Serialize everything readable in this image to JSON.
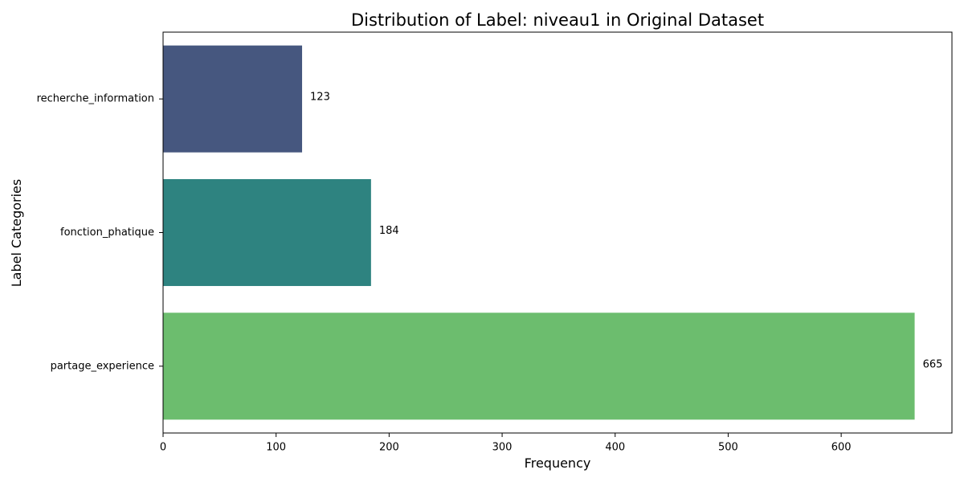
{
  "chart_data": {
    "type": "bar",
    "orientation": "horizontal",
    "title": "Distribution of Label: niveau1 in Original Dataset",
    "xlabel": "Frequency",
    "ylabel": "Label Categories",
    "categories": [
      "recherche_information",
      "fonction_phatique",
      "partage_experience"
    ],
    "values": [
      123,
      184,
      665
    ],
    "data_labels": [
      "123",
      "184",
      "665"
    ],
    "colors": [
      "#46577f",
      "#2e8380",
      "#6cbd6e"
    ],
    "xlim": [
      0,
      698
    ],
    "xticks": [
      0,
      100,
      200,
      300,
      400,
      500,
      600
    ],
    "xtick_labels": [
      "0",
      "100",
      "200",
      "300",
      "400",
      "500",
      "600"
    ],
    "grid": false,
    "legend": "none"
  }
}
